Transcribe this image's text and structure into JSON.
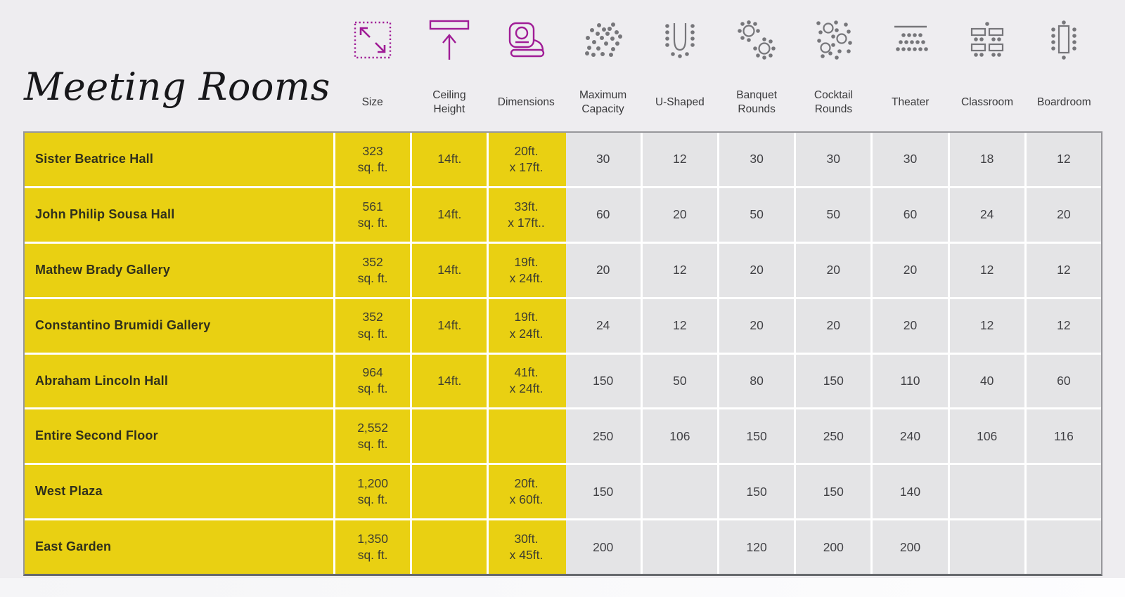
{
  "title": "Meeting Rooms",
  "colors": {
    "highlight_yellow": "#e9d012",
    "cell_gray": "#e4e4e6",
    "icon_magenta": "#a01c96",
    "icon_gray": "#76767a",
    "background": "#eeedf0",
    "table_border": "#97979b"
  },
  "columns": [
    {
      "label": "Size",
      "icon": "size-icon"
    },
    {
      "label": "Ceiling\nHeight",
      "icon": "ceiling-height-icon"
    },
    {
      "label": "Dimensions",
      "icon": "dimensions-icon"
    },
    {
      "label": "Maximum\nCapacity",
      "icon": "maximum-capacity-icon"
    },
    {
      "label": "U-Shaped",
      "icon": "u-shaped-icon"
    },
    {
      "label": "Banquet\nRounds",
      "icon": "banquet-rounds-icon"
    },
    {
      "label": "Cocktail\nRounds",
      "icon": "cocktail-rounds-icon"
    },
    {
      "label": "Theater",
      "icon": "theater-icon"
    },
    {
      "label": "Classroom",
      "icon": "classroom-icon"
    },
    {
      "label": "Boardroom",
      "icon": "boardroom-icon"
    }
  ],
  "table": {
    "rows": [
      {
        "name": "Sister Beatrice Hall",
        "size_value": "323",
        "size_unit": "sq. ft.",
        "ceiling": "14ft.",
        "dim1": "20ft.",
        "dim2": "x 17ft.",
        "capacities": [
          "30",
          "12",
          "30",
          "30",
          "30",
          "18",
          "12"
        ]
      },
      {
        "name": "John Philip Sousa Hall",
        "size_value": "561",
        "size_unit": "sq. ft.",
        "ceiling": "14ft.",
        "dim1": "33ft.",
        "dim2": "x 17ft..",
        "capacities": [
          "60",
          "20",
          "50",
          "50",
          "60",
          "24",
          "20"
        ]
      },
      {
        "name": "Mathew Brady Gallery",
        "size_value": "352",
        "size_unit": "sq. ft.",
        "ceiling": "14ft.",
        "dim1": "19ft.",
        "dim2": "x 24ft.",
        "capacities": [
          "20",
          "12",
          "20",
          "20",
          "20",
          "12",
          "12"
        ]
      },
      {
        "name": "Constantino Brumidi Gallery",
        "size_value": "352",
        "size_unit": "sq. ft.",
        "ceiling": "14ft.",
        "dim1": "19ft.",
        "dim2": "x 24ft.",
        "capacities": [
          "24",
          "12",
          "20",
          "20",
          "20",
          "12",
          "12"
        ]
      },
      {
        "name": "Abraham Lincoln Hall",
        "size_value": "964",
        "size_unit": "sq. ft.",
        "ceiling": "14ft.",
        "dim1": "41ft.",
        "dim2": "x 24ft.",
        "capacities": [
          "150",
          "50",
          "80",
          "150",
          "110",
          "40",
          "60"
        ]
      },
      {
        "name": "Entire Second Floor",
        "size_value": "2,552",
        "size_unit": "sq. ft.",
        "ceiling": "",
        "dim1": "",
        "dim2": "",
        "capacities": [
          "250",
          "106",
          "150",
          "250",
          "240",
          "106",
          "116"
        ]
      },
      {
        "name": "West Plaza",
        "size_value": "1,200",
        "size_unit": "sq. ft.",
        "ceiling": "",
        "dim1": "20ft.",
        "dim2": "x 60ft.",
        "capacities": [
          "150",
          "",
          "150",
          "150",
          "140",
          "",
          ""
        ]
      },
      {
        "name": "East Garden",
        "size_value": "1,350",
        "size_unit": "sq. ft.",
        "ceiling": "",
        "dim1": "30ft.",
        "dim2": "x 45ft.",
        "capacities": [
          "200",
          "",
          "120",
          "200",
          "200",
          "",
          ""
        ]
      }
    ]
  },
  "chart_data": {
    "type": "table",
    "title": "Meeting Rooms",
    "columns": [
      "Room",
      "Size",
      "Ceiling Height",
      "Dimensions",
      "Maximum Capacity",
      "U-Shaped",
      "Banquet Rounds",
      "Cocktail Rounds",
      "Theater",
      "Classroom",
      "Boardroom"
    ],
    "rows": [
      [
        "Sister Beatrice Hall",
        "323 sq. ft.",
        "14ft.",
        "20ft. x 17ft.",
        30,
        12,
        30,
        30,
        30,
        18,
        12
      ],
      [
        "John Philip Sousa Hall",
        "561 sq. ft.",
        "14ft.",
        "33ft. x 17ft.",
        60,
        20,
        50,
        50,
        60,
        24,
        20
      ],
      [
        "Mathew Brady Gallery",
        "352 sq. ft.",
        "14ft.",
        "19ft. x 24ft.",
        20,
        12,
        20,
        20,
        20,
        12,
        12
      ],
      [
        "Constantino Brumidi Gallery",
        "352 sq. ft.",
        "14ft.",
        "19ft. x 24ft.",
        24,
        12,
        20,
        20,
        20,
        12,
        12
      ],
      [
        "Abraham Lincoln Hall",
        "964 sq. ft.",
        "14ft.",
        "41ft. x 24ft.",
        150,
        50,
        80,
        150,
        110,
        40,
        60
      ],
      [
        "Entire Second Floor",
        "2,552 sq. ft.",
        null,
        null,
        250,
        106,
        150,
        250,
        240,
        106,
        116
      ],
      [
        "West Plaza",
        "1,200 sq. ft.",
        null,
        "20ft. x 60ft.",
        150,
        null,
        150,
        150,
        140,
        null,
        null
      ],
      [
        "East Garden",
        "1,350 sq. ft.",
        null,
        "30ft. x 45ft.",
        200,
        null,
        120,
        200,
        200,
        null,
        null
      ]
    ]
  }
}
